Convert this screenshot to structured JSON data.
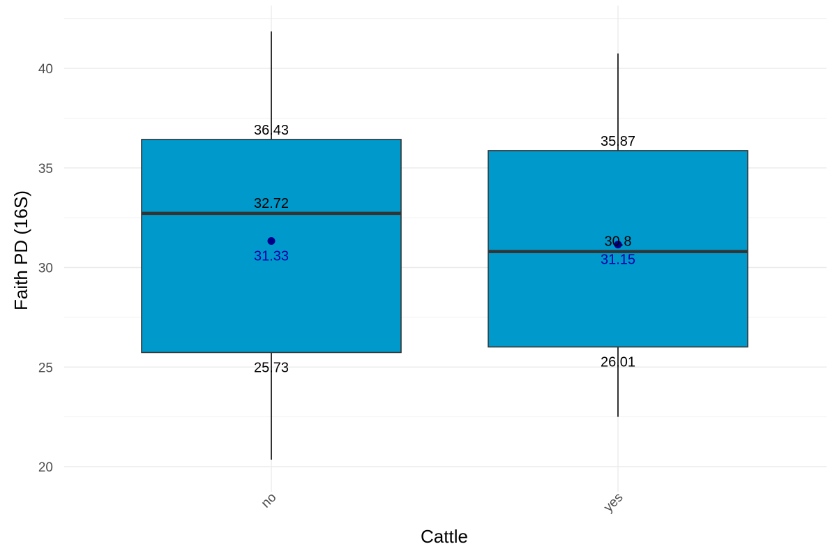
{
  "chart_data": {
    "type": "box",
    "xlabel": "Cattle",
    "ylabel": "Faith PD (16S)",
    "ylim": [
      19.0,
      43.0
    ],
    "y_ticks": [
      20,
      25,
      30,
      35,
      40
    ],
    "y_tick_labels": [
      "20",
      "25",
      "30",
      "35",
      "40"
    ],
    "y_minor_ticks": [
      22.5,
      27.5,
      32.5,
      37.5,
      42.5
    ],
    "grid": true,
    "categories": [
      "no",
      "yes"
    ],
    "boxes": [
      {
        "category": "no",
        "whisker_low": 20.35,
        "q1": 25.73,
        "median": 32.72,
        "q3": 36.43,
        "whisker_high": 41.85,
        "mean": 31.33,
        "q1_label": "25.73",
        "median_label": "32.72",
        "q3_label": "36.43",
        "mean_label": "31.33"
      },
      {
        "category": "yes",
        "whisker_low": 22.5,
        "q1": 26.01,
        "median": 30.8,
        "q3": 35.87,
        "whisker_high": 40.75,
        "mean": 31.15,
        "q1_label": "26.01",
        "median_label": "30.8",
        "q3_label": "35.87",
        "mean_label": "31.15"
      }
    ],
    "colors": {
      "box_fill": "#0099CC",
      "box_outline": "#333333",
      "median_line": "#333333",
      "whisker": "#000000",
      "mean_point": "#00008B",
      "mean_label": "#0000AA"
    }
  }
}
